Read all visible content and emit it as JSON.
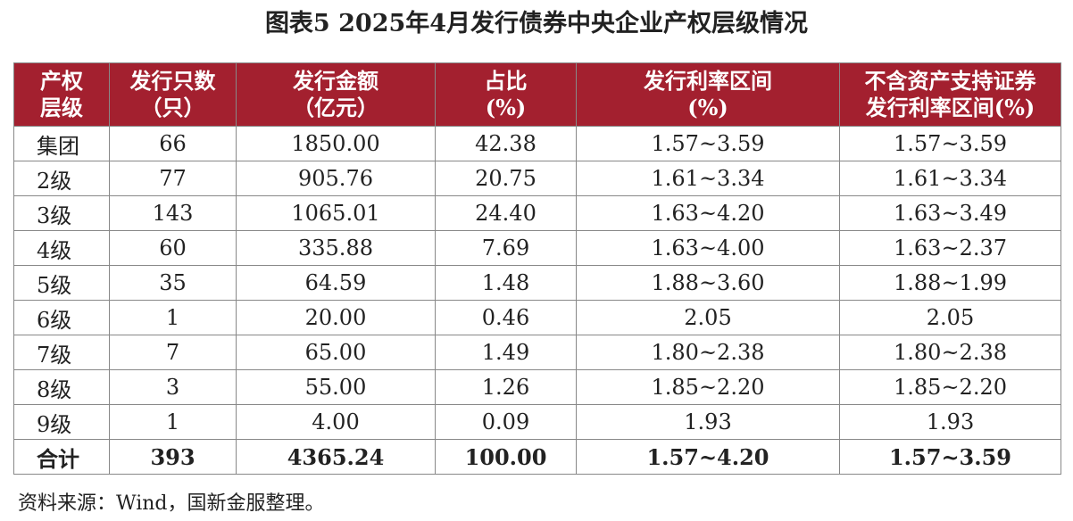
{
  "title": "图表5  2025年4月发行债券中央企业产权层级情况",
  "table": {
    "header": [
      [
        "产权",
        "层级"
      ],
      [
        "发行只数",
        "（只）"
      ],
      [
        "发行金额",
        "（亿元）"
      ],
      [
        "占比",
        "(%)"
      ],
      [
        "发行利率区间",
        "(%)"
      ],
      [
        "不含资产支持证券",
        "发行利率区间(%)"
      ]
    ],
    "rows": [
      [
        "集团",
        "66",
        "1850.00",
        "42.38",
        "1.57~3.59",
        "1.57~3.59"
      ],
      [
        "2级",
        "77",
        "905.76",
        "20.75",
        "1.61~3.34",
        "1.61~3.34"
      ],
      [
        "3级",
        "143",
        "1065.01",
        "24.40",
        "1.63~4.20",
        "1.63~3.49"
      ],
      [
        "4级",
        "60",
        "335.88",
        "7.69",
        "1.63~4.00",
        "1.63~2.37"
      ],
      [
        "5级",
        "35",
        "64.59",
        "1.48",
        "1.88~3.60",
        "1.88~1.99"
      ],
      [
        "6级",
        "1",
        "20.00",
        "0.46",
        "2.05",
        "2.05"
      ],
      [
        "7级",
        "7",
        "65.00",
        "1.49",
        "1.80~2.38",
        "1.80~2.38"
      ],
      [
        "8级",
        "3",
        "55.00",
        "1.26",
        "1.85~2.20",
        "1.85~2.20"
      ],
      [
        "9级",
        "1",
        "4.00",
        "0.09",
        "1.93",
        "1.93"
      ],
      [
        "合计",
        "393",
        "4365.24",
        "100.00",
        "1.57~4.20",
        "1.57~3.59"
      ]
    ]
  },
  "source": "资料来源：Wind，国新金服整理。"
}
